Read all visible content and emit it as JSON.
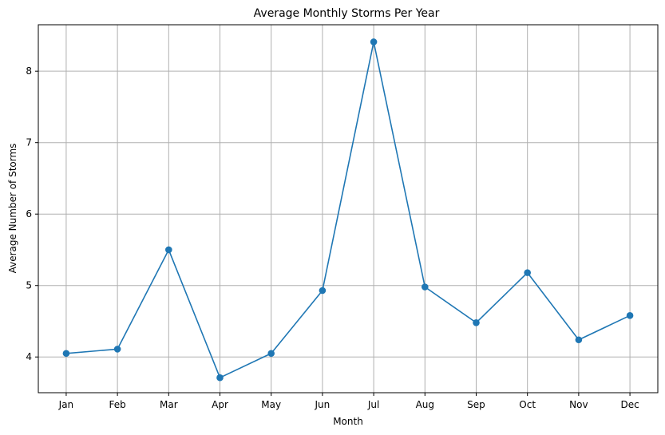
{
  "chart_data": {
    "type": "line",
    "title": "Average Monthly Storms Per Year",
    "xlabel": "Month",
    "ylabel": "Average Number of Storms",
    "categories": [
      "Jan",
      "Feb",
      "Mar",
      "Apr",
      "May",
      "Jun",
      "Jul",
      "Aug",
      "Sep",
      "Oct",
      "Nov",
      "Dec"
    ],
    "series": [
      {
        "values": [
          4.05,
          4.11,
          5.5,
          3.71,
          4.05,
          4.93,
          8.41,
          4.98,
          4.48,
          5.18,
          4.24,
          4.58
        ],
        "color": "#1f77b4",
        "marker": "circle"
      }
    ],
    "ylim": [
      3.5,
      8.65
    ],
    "yticks": [
      4,
      5,
      6,
      7,
      8
    ],
    "grid": true
  }
}
